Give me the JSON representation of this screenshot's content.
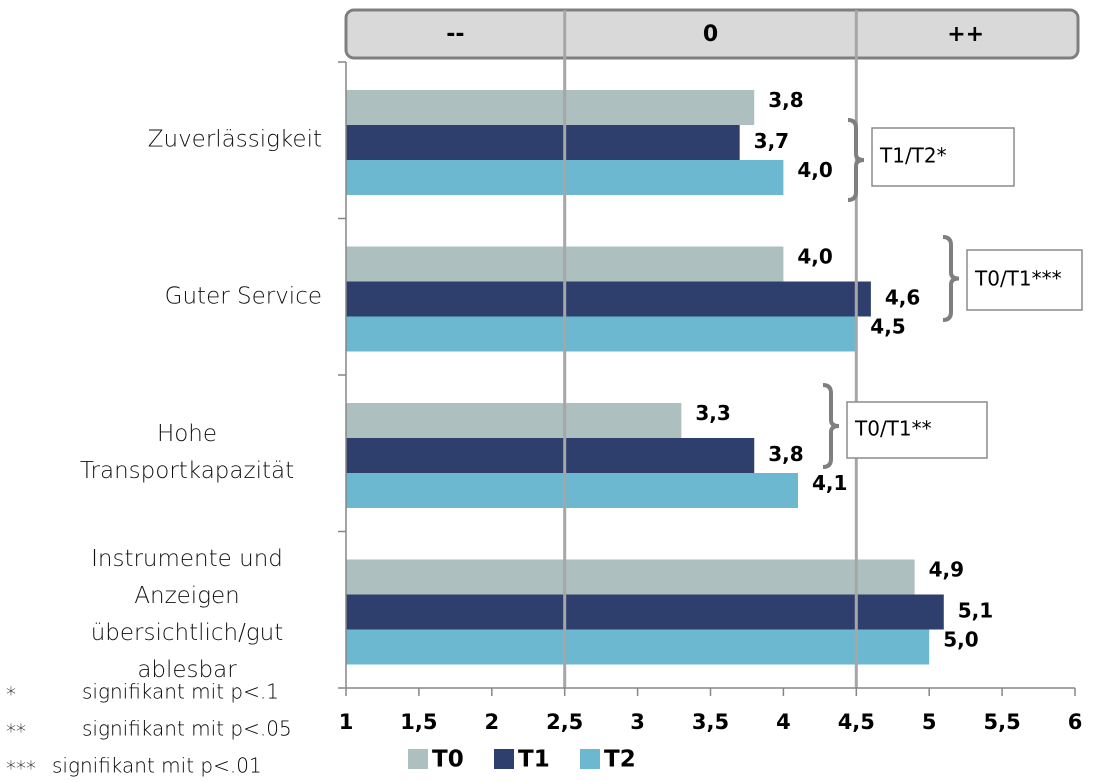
{
  "chart_data": {
    "type": "bar",
    "orientation": "horizontal",
    "categories": [
      "Zuverlässigkeit",
      "Guter Service",
      "Hohe Transportkapazität",
      "Instrumente und Anzeigen übersichtlich/gut ablesbar"
    ],
    "series": [
      {
        "name": "T0",
        "color": "#aebfbf",
        "values": [
          3.8,
          4.0,
          3.3,
          4.9
        ],
        "value_labels": [
          "3,8",
          "4,0",
          "3,3",
          "4,9"
        ]
      },
      {
        "name": "T1",
        "color": "#2e3f6e",
        "values": [
          3.7,
          4.6,
          3.8,
          5.1
        ],
        "value_labels": [
          "3,7",
          "4,6",
          "3,8",
          "5,1"
        ]
      },
      {
        "name": "T2",
        "color": "#6cb8d0",
        "values": [
          4.0,
          4.5,
          4.1,
          5.0
        ],
        "value_labels": [
          "4,0",
          "4,5",
          "4,1",
          "5,0"
        ]
      }
    ],
    "xlim": [
      1,
      6
    ],
    "xticks": [
      1,
      {
        "value": 1.5,
        "label": "1,5"
      },
      2,
      {
        "value": 2.5,
        "label": "2,5"
      },
      3,
      {
        "value": 3.5,
        "label": "3,5"
      },
      4,
      {
        "value": 4.5,
        "label": "4,5"
      },
      5,
      {
        "value": 5.5,
        "label": "5,5"
      },
      6
    ],
    "zones": [
      "--",
      "0",
      "++"
    ],
    "zone_bounds": [
      2.5,
      4.5
    ],
    "annotations": [
      "T1/T2*",
      "T0/T1***",
      "T0/T1**"
    ],
    "footnotes": [
      {
        "symbol": "*",
        "text": "signifikant mit p<.1"
      },
      {
        "symbol": "**",
        "text": "signifikant mit p<.05"
      },
      {
        "symbol": "***",
        "text": "signifikant mit p<.01"
      }
    ],
    "legend": "bottom"
  }
}
